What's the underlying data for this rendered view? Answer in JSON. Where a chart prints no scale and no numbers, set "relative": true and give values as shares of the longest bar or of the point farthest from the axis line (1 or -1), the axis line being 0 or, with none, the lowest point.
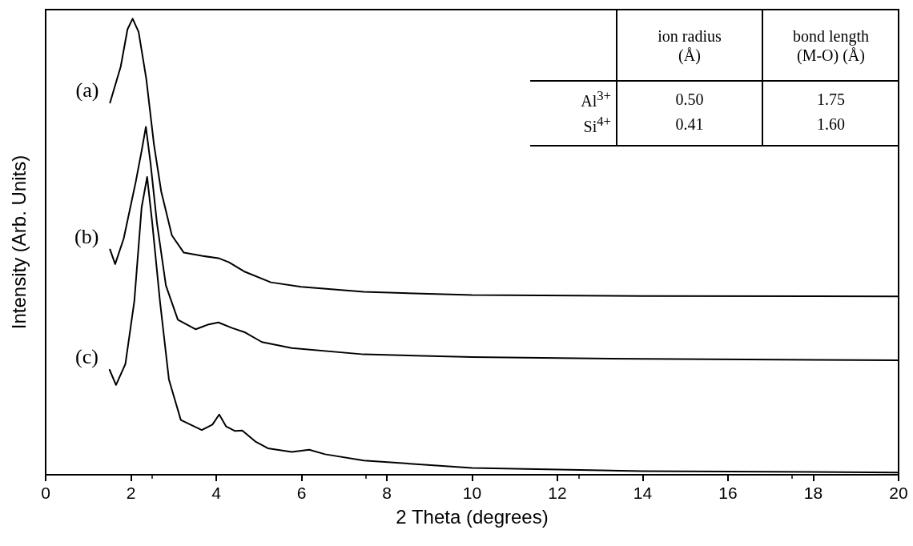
{
  "chart_data": {
    "type": "line",
    "xlabel": "2 Theta (degrees)",
    "ylabel": "Intensity (Arb. Units)",
    "relative": true,
    "xlim": [
      0,
      20
    ],
    "xticks": [
      0,
      2,
      4,
      6,
      8,
      10,
      12,
      14,
      16,
      18,
      20
    ],
    "grid": false,
    "legend": false,
    "marker": "none",
    "line_style": "solid",
    "annotations": [
      "ion radius (Å)",
      "bond length (M-O) (Å)",
      "Al$^{3+}$",
      "0.50",
      "1.75",
      "Si$^{4+}$",
      "0.41",
      "1.60"
    ],
    "series": [
      {
        "name": "(a)",
        "color": "#000000",
        "x": [
          1.51,
          1.76,
          1.92,
          2.04,
          2.18,
          2.36,
          2.54,
          2.71,
          2.96,
          3.24,
          3.66,
          4.05,
          4.3,
          4.65,
          5.28,
          5.99,
          7.46,
          10,
          14,
          20
        ],
        "values": [
          0.816,
          0.895,
          0.977,
          1.0,
          0.971,
          0.868,
          0.724,
          0.621,
          0.525,
          0.487,
          0.48,
          0.475,
          0.466,
          0.446,
          0.422,
          0.412,
          0.401,
          0.394,
          0.392,
          0.391
        ]
      },
      {
        "name": "(b)",
        "color": "#000000",
        "x": [
          1.51,
          1.63,
          1.83,
          2.11,
          2.25,
          2.35,
          2.46,
          2.61,
          2.82,
          3.1,
          3.52,
          3.8,
          4.05,
          4.37,
          4.68,
          5.07,
          5.77,
          7.46,
          10,
          14,
          20
        ],
        "values": [
          0.494,
          0.462,
          0.518,
          0.641,
          0.71,
          0.763,
          0.683,
          0.552,
          0.415,
          0.34,
          0.319,
          0.329,
          0.334,
          0.322,
          0.312,
          0.291,
          0.278,
          0.264,
          0.258,
          0.254,
          0.251
        ]
      },
      {
        "name": "(c)",
        "color": "#000000",
        "x": [
          1.5,
          1.65,
          1.87,
          2.08,
          2.25,
          2.38,
          2.5,
          2.68,
          2.89,
          3.17,
          3.66,
          3.91,
          4.07,
          4.23,
          4.44,
          4.61,
          4.93,
          5.21,
          5.77,
          6.18,
          6.55,
          7.46,
          10,
          14,
          20
        ],
        "values": [
          0.23,
          0.197,
          0.243,
          0.381,
          0.586,
          0.653,
          0.552,
          0.381,
          0.209,
          0.12,
          0.098,
          0.11,
          0.132,
          0.106,
          0.096,
          0.097,
          0.072,
          0.058,
          0.05,
          0.055,
          0.045,
          0.031,
          0.015,
          0.008,
          0.005
        ]
      }
    ]
  }
}
